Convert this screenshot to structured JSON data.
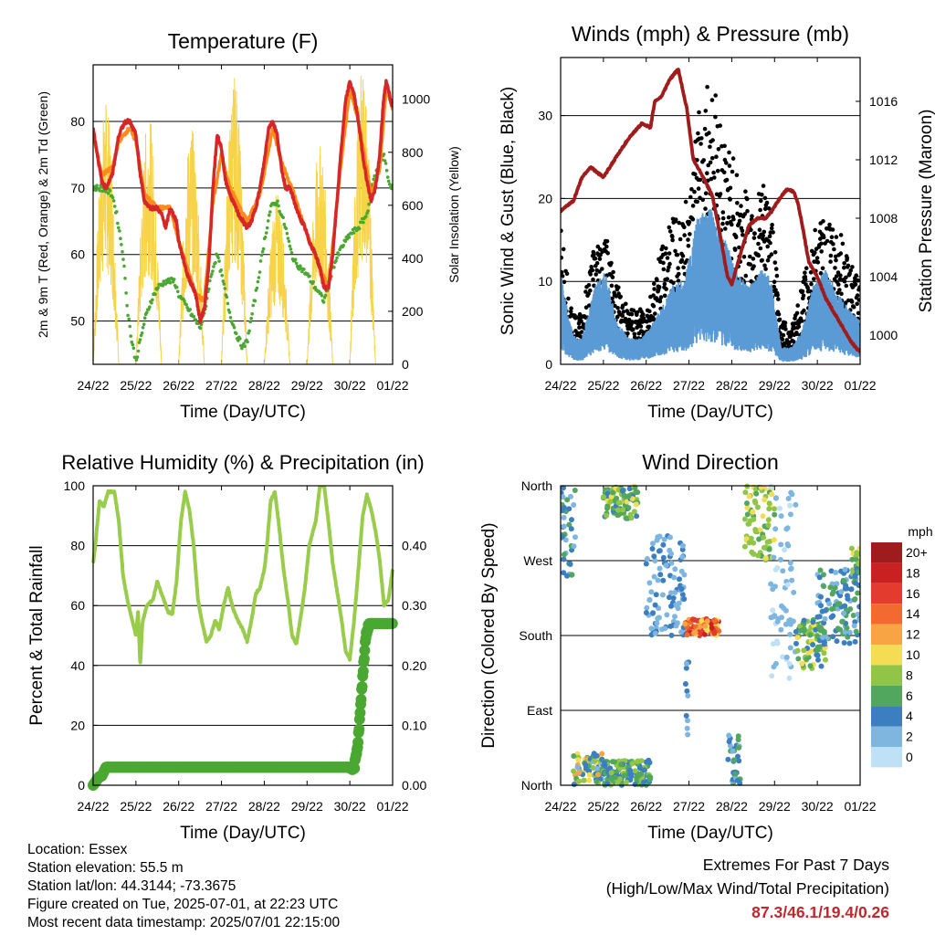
{
  "x_ticks": [
    "24/22",
    "25/22",
    "26/22",
    "27/22",
    "28/22",
    "29/22",
    "30/22",
    "01/22"
  ],
  "chart_data": [
    {
      "type": "line",
      "title": "Temperature (F)",
      "xlabel": "Time (Day/UTC)",
      "ylabel": "2m & 9m T (Red, Orange) & 2m Td (Green)",
      "y2label": "Solar Insolation (Yellow)",
      "ylim": [
        43.5,
        88.5
      ],
      "yticks": [
        50,
        60,
        70,
        80
      ],
      "y2lim": [
        0,
        1130
      ],
      "y2ticks": [
        0,
        200,
        400,
        600,
        800,
        1000
      ],
      "grid": true,
      "colors": {
        "t2m": "#d62728",
        "t9m": "#ff8c1a",
        "td": "#4aa832",
        "solar": "#f7d348"
      },
      "series": [
        {
          "key": "t2m",
          "x": [
            0,
            0.1,
            0.2,
            0.3,
            0.45,
            0.6,
            0.75,
            0.85,
            1.0,
            1.1,
            1.2,
            1.35,
            1.5,
            1.6,
            1.7,
            1.8,
            1.95,
            2.0,
            2.2,
            2.4,
            2.5,
            2.6,
            2.7,
            2.8,
            2.9,
            3.0,
            3.05,
            3.1,
            3.15,
            3.2,
            3.4,
            3.6,
            3.7,
            3.8,
            3.9,
            4.0,
            4.1,
            4.2,
            4.3,
            4.4,
            4.5,
            4.6,
            4.7,
            4.8,
            4.95,
            5.05,
            5.2,
            5.3,
            5.4,
            5.5,
            5.6,
            5.7,
            5.8,
            5.9,
            6.0,
            6.1,
            6.2,
            6.3,
            6.4,
            6.5,
            6.6,
            6.7,
            6.75,
            6.8,
            6.85,
            6.9,
            6.95,
            7.0
          ],
          "values": [
            79,
            75,
            71,
            70,
            72,
            78,
            80,
            80,
            78,
            72,
            68,
            67,
            67,
            66,
            64,
            67,
            65,
            62,
            57,
            54,
            50,
            52,
            58,
            70,
            78,
            76,
            73,
            71,
            70,
            69,
            66,
            64,
            65,
            67,
            70,
            74,
            79,
            80,
            78,
            73,
            70,
            70,
            68,
            66,
            64,
            62,
            60,
            58,
            55,
            55,
            60,
            68,
            76,
            83,
            86,
            84,
            80,
            75,
            71,
            68,
            70,
            75,
            80,
            84,
            86,
            85,
            83,
            82
          ]
        },
        {
          "key": "t9m",
          "x": [
            0,
            0.2,
            0.45,
            0.6,
            0.85,
            1.0,
            1.2,
            1.5,
            1.8,
            2.0,
            2.4,
            2.6,
            2.8,
            3.0,
            3.2,
            3.6,
            3.9,
            4.2,
            4.4,
            4.7,
            5.0,
            5.3,
            5.5,
            5.8,
            6.0,
            6.2,
            6.5,
            6.7,
            6.85,
            7.0
          ],
          "values": [
            78,
            72,
            73,
            77,
            79,
            77,
            69,
            67,
            67,
            62,
            54,
            53,
            68,
            75,
            70,
            65,
            69,
            79,
            74,
            69,
            63,
            58,
            55,
            74,
            85,
            80,
            69,
            73,
            85,
            82
          ]
        },
        {
          "key": "td",
          "x": [
            0,
            0.2,
            0.35,
            0.45,
            0.55,
            0.7,
            0.8,
            0.9,
            1.0,
            1.1,
            1.2,
            1.35,
            1.5,
            1.7,
            1.9,
            2.0,
            2.2,
            2.4,
            2.5,
            2.6,
            2.7,
            2.8,
            2.9,
            3.0,
            3.1,
            3.2,
            3.35,
            3.5,
            3.6,
            3.8,
            4.0,
            4.15,
            4.3,
            4.4,
            4.5,
            4.6,
            4.7,
            4.85,
            5.0,
            5.2,
            5.4,
            5.6,
            5.8,
            6.0,
            6.2,
            6.4,
            6.5,
            6.6,
            6.7,
            6.8,
            6.9,
            7.0
          ],
          "values": [
            70,
            70,
            69.5,
            69,
            66,
            60,
            52,
            47,
            44,
            47,
            50,
            53,
            55,
            56,
            56,
            54,
            52,
            50,
            49,
            51,
            55,
            58,
            60,
            57,
            54,
            51,
            48,
            46,
            47,
            54,
            62,
            67,
            68,
            66,
            64,
            61,
            59,
            58,
            57,
            55,
            53,
            58,
            61,
            63,
            64,
            66,
            70,
            72,
            74,
            75,
            71,
            70
          ]
        },
        {
          "key": "solar",
          "type": "daily-cycle",
          "peak_fraction": 0.3,
          "peaks": [
            1000,
            950,
            900,
            1090,
            650,
            830,
            1120
          ]
        }
      ]
    },
    {
      "type": "scatter",
      "title": "Winds (mph) & Pressure (mb)",
      "xlabel": "Time (Day/UTC)",
      "ylabel": "Sonic Wind & Gust (Blue, Black)",
      "y2label": "Station Pressure (Maroon)",
      "ylim": [
        0,
        37
      ],
      "yticks": [
        0,
        10,
        20,
        30
      ],
      "y2lim": [
        998,
        1019
      ],
      "y2ticks": [
        1000,
        1004,
        1008,
        1012,
        1016
      ],
      "grid": true,
      "colors": {
        "wind": "#5b9bd5",
        "gust": "#000000",
        "pressure": "#a01c1c"
      },
      "wind_envelope": {
        "x": [
          0,
          0.2,
          0.35,
          0.5,
          0.8,
          1.05,
          1.3,
          1.6,
          1.85,
          2.05,
          2.3,
          2.6,
          2.9,
          3.2,
          3.5,
          3.8,
          4.1,
          4.4,
          4.7,
          4.9,
          5.15,
          5.4,
          5.65,
          5.9,
          6.2,
          6.5,
          6.8,
          7.0
        ],
        "values": [
          11,
          5,
          3,
          3,
          9,
          11,
          5,
          3,
          3,
          4,
          6,
          9,
          10,
          17,
          18,
          15,
          11,
          9,
          11,
          10,
          2,
          2,
          4,
          9,
          11,
          8,
          6,
          5
        ]
      },
      "gust_envelope": {
        "x": [
          0,
          0.2,
          0.35,
          0.5,
          0.8,
          1.05,
          1.3,
          1.6,
          1.85,
          2.05,
          2.3,
          2.6,
          2.9,
          3.2,
          3.5,
          3.8,
          4.1,
          4.4,
          4.7,
          4.9,
          5.15,
          5.4,
          5.65,
          5.9,
          6.2,
          6.5,
          6.8,
          7.0
        ],
        "values": [
          17,
          8,
          5,
          6,
          14,
          15,
          9,
          6,
          6,
          7,
          12,
          16,
          17,
          27,
          33,
          26,
          22,
          18,
          20,
          19,
          5,
          4,
          9,
          15,
          16,
          15,
          11,
          9
        ]
      },
      "series": [
        {
          "key": "pressure",
          "x": [
            0,
            0.3,
            0.5,
            0.7,
            1.0,
            1.3,
            1.6,
            1.9,
            2.1,
            2.2,
            2.35,
            2.55,
            2.75,
            2.95,
            3.1,
            3.3,
            3.55,
            3.75,
            3.9,
            4.0,
            4.2,
            4.4,
            4.6,
            4.8,
            5.0,
            5.15,
            5.3,
            5.45,
            5.55,
            5.65,
            5.8,
            6.0,
            6.2,
            6.4,
            6.6,
            6.8,
            7.0
          ],
          "values": [
            1008.5,
            1009.2,
            1010.8,
            1011.5,
            1010.8,
            1012.2,
            1013.5,
            1014.5,
            1014.2,
            1016.0,
            1016.3,
            1017.5,
            1018.2,
            1015.5,
            1012.0,
            1011.0,
            1009.5,
            1006.5,
            1004.0,
            1003.5,
            1005.5,
            1007.5,
            1008.0,
            1008.0,
            1008.8,
            1009.5,
            1010.0,
            1009.8,
            1009.0,
            1007.5,
            1005.0,
            1004.0,
            1002.5,
            1001.5,
            1000.5,
            999.5,
            998.8
          ]
        }
      ]
    },
    {
      "type": "line",
      "title": "Relative Humidity (%) & Precipitation (in)",
      "xlabel": "Time (Day/UTC)",
      "ylabel": "Percent & Total Rainfall",
      "ylim": [
        0,
        100
      ],
      "yticks": [
        0,
        20,
        40,
        60,
        80,
        100
      ],
      "y2lim": [
        0,
        0.5
      ],
      "y2ticks": [
        0.0,
        0.1,
        0.2,
        0.3,
        0.4
      ],
      "y2ticklabels": [
        "0.00",
        "0.10",
        "0.20",
        "0.30",
        "0.40"
      ],
      "grid": true,
      "colors": {
        "rh": "#99cc4a",
        "precip": "#4aa832"
      },
      "series": [
        {
          "key": "rh",
          "x": [
            0,
            0.05,
            0.15,
            0.25,
            0.35,
            0.5,
            0.6,
            0.7,
            0.8,
            0.9,
            1.0,
            1.05,
            1.1,
            1.15,
            1.25,
            1.4,
            1.5,
            1.6,
            1.75,
            1.85,
            1.95,
            2.05,
            2.15,
            2.25,
            2.35,
            2.45,
            2.55,
            2.65,
            2.75,
            2.85,
            2.95,
            3.05,
            3.15,
            3.25,
            3.35,
            3.5,
            3.6,
            3.7,
            3.8,
            3.9,
            4.0,
            4.05,
            4.15,
            4.25,
            4.35,
            4.45,
            4.55,
            4.65,
            4.75,
            4.85,
            4.95,
            5.05,
            5.2,
            5.3,
            5.4,
            5.5,
            5.6,
            5.7,
            5.8,
            5.9,
            6.0,
            6.1,
            6.2,
            6.3,
            6.4,
            6.5,
            6.6,
            6.7,
            6.8,
            6.9,
            7.0
          ],
          "values": [
            74,
            80,
            95,
            93,
            98,
            98,
            88,
            70,
            62,
            56,
            50,
            58,
            40,
            54,
            60,
            62,
            68,
            64,
            58,
            57,
            68,
            88,
            98,
            92,
            80,
            62,
            54,
            48,
            50,
            55,
            52,
            60,
            66,
            60,
            56,
            52,
            48,
            55,
            64,
            66,
            72,
            78,
            95,
            98,
            86,
            72,
            62,
            50,
            47,
            56,
            66,
            80,
            88,
            100,
            100,
            88,
            74,
            65,
            56,
            45,
            42,
            55,
            72,
            90,
            97,
            92,
            85,
            75,
            60,
            62,
            72
          ]
        },
        {
          "key": "precip",
          "x": [
            0,
            0.1,
            0.15,
            0.2,
            0.3,
            6.0,
            6.1,
            6.15,
            6.2,
            6.25,
            6.3,
            6.35,
            6.4,
            6.45,
            7.0
          ],
          "values": [
            0.0,
            0.01,
            0.015,
            0.015,
            0.03,
            0.03,
            0.03,
            0.05,
            0.08,
            0.13,
            0.18,
            0.23,
            0.26,
            0.27,
            0.27
          ]
        }
      ]
    },
    {
      "type": "scatter",
      "title": "Wind Direction",
      "xlabel": "Time (Day/UTC)",
      "ylabel": "Direction (Colored By Speed)",
      "ylim": [
        0,
        360
      ],
      "yticks": [
        0,
        90,
        180,
        270,
        360
      ],
      "yticklabels": [
        "North",
        "East",
        "South",
        "West",
        "North"
      ],
      "grid": true,
      "colorbar": {
        "title": "mph",
        "labels": [
          "20+",
          "18",
          "16",
          "14",
          "12",
          "10",
          "8",
          "6",
          "4",
          "2",
          "0"
        ],
        "colors": [
          "#9e1b1e",
          "#c92121",
          "#e33b2e",
          "#f36a30",
          "#f9a444",
          "#f5dc55",
          "#90c548",
          "#52a75f",
          "#3c7fc0",
          "#7eb6e0",
          "#bfe1f5"
        ]
      },
      "clusters": [
        {
          "t": [
            0.0,
            0.35
          ],
          "dir": [
            250,
            360
          ],
          "speed": [
            2,
            6
          ]
        },
        {
          "t": [
            0.3,
            1.0
          ],
          "dir": [
            0,
            40
          ],
          "speed": [
            2,
            12
          ]
        },
        {
          "t": [
            1.0,
            1.8
          ],
          "dir": [
            320,
            360
          ],
          "speed": [
            4,
            10
          ]
        },
        {
          "t": [
            1.0,
            2.1
          ],
          "dir": [
            0,
            30
          ],
          "speed": [
            3,
            9
          ]
        },
        {
          "t": [
            2.0,
            2.9
          ],
          "dir": [
            180,
            300
          ],
          "speed": [
            1,
            5
          ]
        },
        {
          "t": [
            2.9,
            3.7
          ],
          "dir": [
            180,
            200
          ],
          "speed": [
            10,
            18
          ]
        },
        {
          "t": [
            2.9,
            3.0
          ],
          "dir": [
            60,
            180
          ],
          "speed": [
            2,
            5
          ]
        },
        {
          "t": [
            3.9,
            4.2
          ],
          "dir": [
            0,
            60
          ],
          "speed": [
            2,
            6
          ]
        },
        {
          "t": [
            4.3,
            5.0
          ],
          "dir": [
            270,
            360
          ],
          "speed": [
            6,
            11
          ]
        },
        {
          "t": [
            4.9,
            5.5
          ],
          "dir": [
            120,
            360
          ],
          "speed": [
            0,
            3
          ]
        },
        {
          "t": [
            5.5,
            6.2
          ],
          "dir": [
            140,
            200
          ],
          "speed": [
            4,
            10
          ]
        },
        {
          "t": [
            6.0,
            7.0
          ],
          "dir": [
            170,
            260
          ],
          "speed": [
            2,
            7
          ]
        },
        {
          "t": [
            6.8,
            7.0
          ],
          "dir": [
            240,
            290
          ],
          "speed": [
            4,
            10
          ]
        }
      ]
    }
  ],
  "info": {
    "location": "Location: Essex",
    "elevation": "Station elevation: 55.5 m",
    "latlon": "Station lat/lon: 44.3144; -73.3675",
    "created": "Figure created on Tue, 2025-07-01, at 22:23 UTC",
    "recent": "Most recent data timestamp: 2025/07/01 22:15:00"
  },
  "extremes": {
    "heading": "Extremes For Past 7 Days",
    "subheading": "(High/Low/Max Wind/Total Precipitation)",
    "values": "87.3/46.1/19.4/0.26"
  }
}
